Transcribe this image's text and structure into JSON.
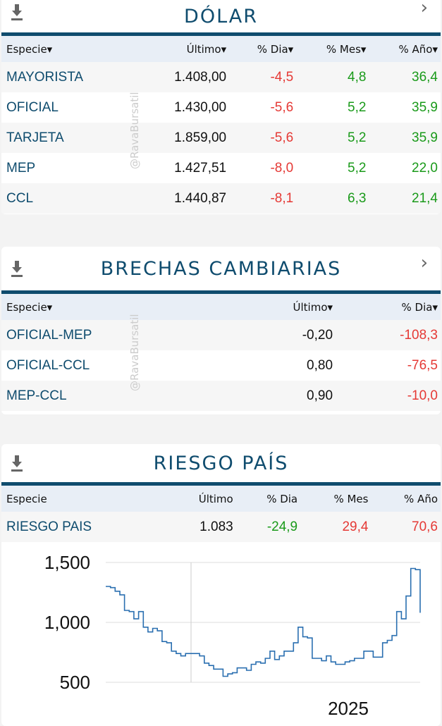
{
  "colors": {
    "brand": "#0f4c6e",
    "positive": "#1a9a1a",
    "negative": "#e53935",
    "line": "#2a6fb0"
  },
  "watermark": "@RavaBursatil",
  "dolar": {
    "title": "DÓLAR",
    "columns": [
      "Especie▾",
      "Último▾",
      "% Dia▾",
      "% Mes▾",
      "% Año▾"
    ],
    "rows": [
      {
        "name": "MAYORISTA",
        "ultimo": "1.408,00",
        "dia": "-4,5",
        "mes": "4,8",
        "ano": "36,4"
      },
      {
        "name": "OFICIAL",
        "ultimo": "1.430,00",
        "dia": "-5,6",
        "mes": "5,2",
        "ano": "35,9"
      },
      {
        "name": "TARJETA",
        "ultimo": "1.859,00",
        "dia": "-5,6",
        "mes": "5,2",
        "ano": "35,9"
      },
      {
        "name": "MEP",
        "ultimo": "1.427,51",
        "dia": "-8,0",
        "mes": "5,2",
        "ano": "22,0"
      },
      {
        "name": "CCL",
        "ultimo": "1.440,87",
        "dia": "-8,1",
        "mes": "6,3",
        "ano": "21,4"
      }
    ]
  },
  "brechas": {
    "title": "BRECHAS CAMBIARIAS",
    "columns": [
      "Especie▾",
      "Último▾",
      "% Dia▾"
    ],
    "rows": [
      {
        "name": "OFICIAL-MEP",
        "ultimo": "-0,20",
        "dia": "-108,3"
      },
      {
        "name": "OFICIAL-CCL",
        "ultimo": "0,80",
        "dia": "-76,5"
      },
      {
        "name": "MEP-CCL",
        "ultimo": "0,90",
        "dia": "-10,0"
      }
    ]
  },
  "riesgo": {
    "title": "RIESGO PAÍS",
    "columns": [
      "Especie",
      "Último",
      "% Dia",
      "% Mes",
      "% Año"
    ],
    "rows": [
      {
        "name": "RIESGO PAIS",
        "ultimo": "1.083",
        "dia": "-24,9",
        "mes": "29,4",
        "ano": "70,6"
      }
    ]
  },
  "chart_data": {
    "type": "line",
    "ylim": [
      500,
      1500
    ],
    "yticks": [
      "1,500",
      "1,000",
      "500"
    ],
    "xtick_label": "2025",
    "grid": true,
    "values": [
      1300,
      1290,
      1260,
      1230,
      1100,
      1090,
      1030,
      1090,
      960,
      920,
      950,
      930,
      840,
      830,
      760,
      740,
      720,
      740,
      740,
      740,
      720,
      660,
      640,
      610,
      610,
      550,
      570,
      580,
      620,
      620,
      600,
      650,
      670,
      660,
      700,
      760,
      690,
      720,
      760,
      760,
      830,
      960,
      880,
      870,
      700,
      700,
      680,
      720,
      670,
      650,
      650,
      670,
      680,
      700,
      700,
      760,
      760,
      710,
      710,
      830,
      850,
      890,
      1090,
      1030,
      1220,
      1450,
      1440,
      1080
    ]
  }
}
